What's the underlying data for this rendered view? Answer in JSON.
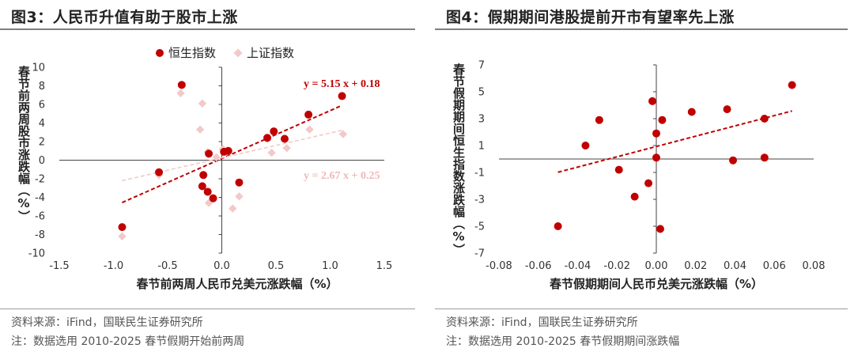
{
  "figures": [
    {
      "title": "图3：人民币升值有助于股市上涨",
      "source": "资料来源：iFind，国联民生证券研究所",
      "note": "注：数据选用 2010-2025 春节假期开始前两周"
    },
    {
      "title": "图4：假期期间港股提前开市有望率先上涨",
      "source": "资料来源：iFind，国联民生证券研究所",
      "note": "注：数据选用 2010-2025 春节假期期间涨跌幅"
    }
  ],
  "colors": {
    "hsi": "#c00000",
    "sse": "#f2c9c9",
    "sse_text": "#f0b8b8",
    "axis": "#444444"
  },
  "chart_data": [
    {
      "type": "scatter",
      "xlabel": "春节前两周人民币兑美元涨跌幅（%）",
      "ylabel": "春节前两周股市涨跌幅（%）",
      "xlim": [
        -1.5,
        1.5
      ],
      "ylim": [
        -10,
        10
      ],
      "xticks": [
        "-1.5",
        "-1.0",
        "-0.5",
        "0.0",
        "0.5",
        "1.0",
        "1.5"
      ],
      "yticks": [
        "-10",
        "-8",
        "-6",
        "-4",
        "-2",
        "0",
        "2",
        "4",
        "6",
        "8",
        "10"
      ],
      "legend_position": "top",
      "grid": false,
      "series": [
        {
          "name": "恒生指数",
          "marker": "circle",
          "points": [
            [
              -0.92,
              -7.2
            ],
            [
              -0.58,
              -1.3
            ],
            [
              -0.37,
              8.1
            ],
            [
              -0.17,
              -1.6
            ],
            [
              -0.18,
              -2.8
            ],
            [
              -0.13,
              -3.4
            ],
            [
              -0.08,
              -4.1
            ],
            [
              -0.12,
              0.7
            ],
            [
              0.02,
              0.9
            ],
            [
              0.06,
              1.0
            ],
            [
              0.16,
              -2.4
            ],
            [
              0.42,
              2.4
            ],
            [
              0.48,
              3.1
            ],
            [
              0.58,
              2.3
            ],
            [
              0.8,
              4.9
            ],
            [
              1.11,
              6.9
            ]
          ],
          "trendline": {
            "slope": 5.15,
            "intercept": 0.18,
            "label": "y = 5.15 x + 0.18"
          }
        },
        {
          "name": "上证指数",
          "marker": "diamond",
          "points": [
            [
              -0.92,
              -8.2
            ],
            [
              -0.58,
              -1.6
            ],
            [
              -0.38,
              7.2
            ],
            [
              -0.18,
              6.1
            ],
            [
              -0.2,
              3.3
            ],
            [
              -0.13,
              0.9
            ],
            [
              -0.12,
              -4.6
            ],
            [
              -0.05,
              0.3
            ],
            [
              0.01,
              1.2
            ],
            [
              0.1,
              -5.2
            ],
            [
              0.16,
              -3.9
            ],
            [
              0.46,
              0.8
            ],
            [
              0.6,
              1.3
            ],
            [
              0.81,
              3.3
            ],
            [
              1.12,
              2.8
            ],
            [
              0.42,
              2.3
            ]
          ],
          "trendline": {
            "slope": 2.67,
            "intercept": 0.25,
            "label": "y = 2.67 x + 0.25"
          }
        }
      ]
    },
    {
      "type": "scatter",
      "xlabel": "春节假期期间人民币兑美元涨跌幅（%）",
      "ylabel": "春节假期期间恒生指数涨跌幅（%）",
      "xlim": [
        -0.08,
        0.08
      ],
      "ylim": [
        -7,
        7
      ],
      "xticks": [
        "-0.08",
        "-0.06",
        "-0.04",
        "-0.02",
        "0.00",
        "0.02",
        "0.04",
        "0.06",
        "0.08"
      ],
      "yticks": [
        "-7",
        "-5",
        "-3",
        "-1",
        "1",
        "3",
        "5",
        "7"
      ],
      "grid": false,
      "series": [
        {
          "name": "",
          "marker": "circle",
          "points": [
            [
              -0.05,
              -5.0
            ],
            [
              -0.036,
              1.0
            ],
            [
              -0.029,
              2.9
            ],
            [
              -0.019,
              -0.8
            ],
            [
              -0.011,
              -2.8
            ],
            [
              -0.004,
              -1.8
            ],
            [
              -0.002,
              4.3
            ],
            [
              0.0,
              1.9
            ],
            [
              0.0,
              0.1
            ],
            [
              0.002,
              -5.2
            ],
            [
              0.003,
              2.9
            ],
            [
              0.018,
              3.5
            ],
            [
              0.036,
              3.7
            ],
            [
              0.039,
              -0.1
            ],
            [
              0.055,
              3.0
            ],
            [
              0.055,
              0.1
            ],
            [
              0.069,
              5.5
            ]
          ],
          "trendline": {
            "slope": 38.3,
            "intercept": 0.93
          }
        }
      ]
    }
  ]
}
